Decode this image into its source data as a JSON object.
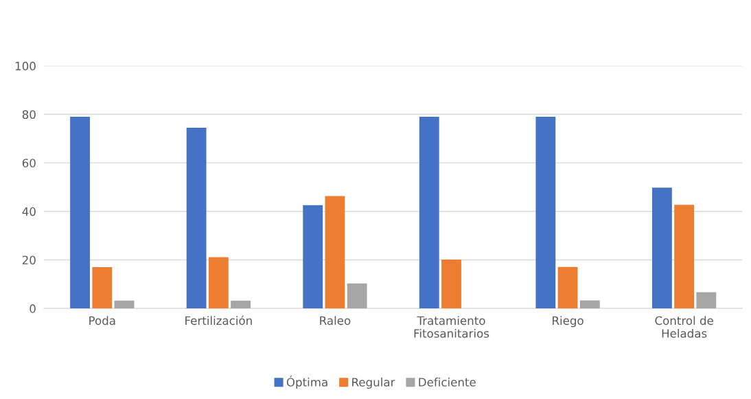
{
  "chart_data": {
    "type": "bar",
    "categories": [
      "Poda",
      "Fertilización",
      "Raleo",
      "Tratamiento\nFitosanitarios",
      "Riego",
      "Control de\nHeladas"
    ],
    "series": [
      {
        "name": "Óptima",
        "color": "#4472c4",
        "values": [
          79.0,
          74.5,
          42.6,
          79.0,
          79.0,
          49.8
        ]
      },
      {
        "name": "Regular",
        "color": "#ed7d31",
        "values": [
          17.0,
          21.1,
          46.3,
          20.1,
          17.1,
          42.7
        ]
      },
      {
        "name": "Deficiente",
        "color": "#a5a5a5",
        "values": [
          3.2,
          3.2,
          10.3,
          0,
          3.3,
          6.7
        ]
      }
    ],
    "ylim": [
      0,
      100
    ],
    "yticks": [
      0,
      20,
      40,
      60,
      80,
      100
    ],
    "grid": "y",
    "legend": "bottom"
  }
}
